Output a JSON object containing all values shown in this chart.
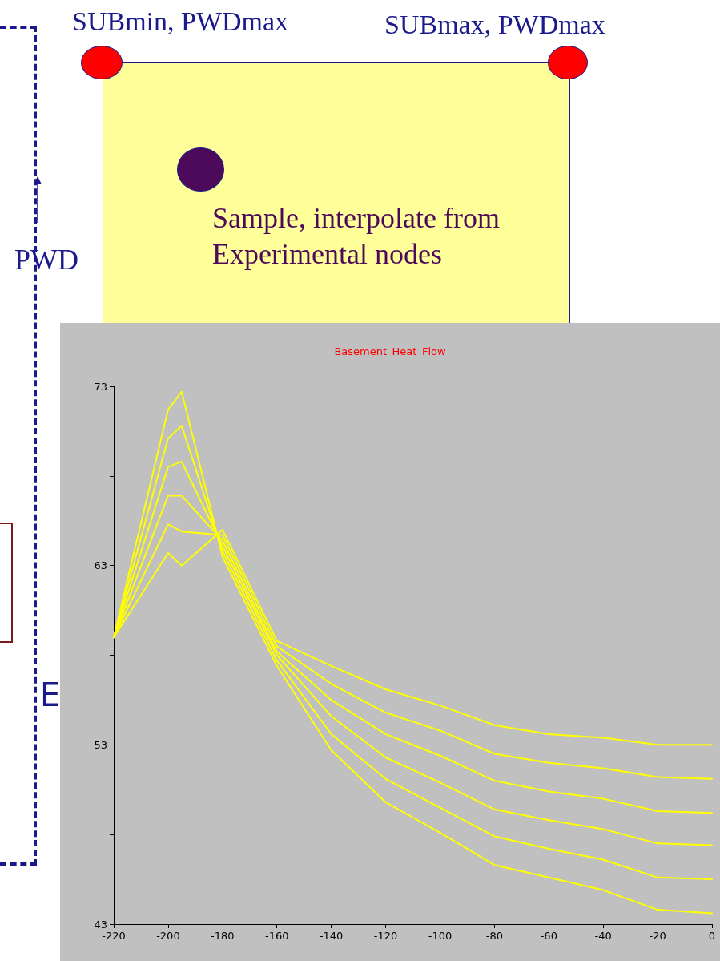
{
  "chart_data": {
    "type": "line",
    "title": "Basement_Heat_Flow",
    "annotations": [
      "SUBmin, PWDmax",
      "SUBmax, PWDmax",
      "Sample, interpolate from\nExperimental nodes",
      "PWD",
      "E"
    ],
    "x": [
      -220,
      -200,
      -195,
      -180,
      -160,
      -140,
      -120,
      -100,
      -80,
      -60,
      -40,
      -20,
      0
    ],
    "series": [
      {
        "color": "#ffff00",
        "values": [
          59.0,
          71.7,
          72.7,
          63.5,
          57.4,
          52.7,
          49.8,
          48.1,
          46.3,
          45.6,
          44.9,
          43.8,
          43.6
        ]
      },
      {
        "color": "#ffff00",
        "values": [
          59.0,
          70.1,
          70.8,
          63.8,
          57.7,
          53.6,
          51.1,
          49.5,
          47.9,
          47.2,
          46.6,
          45.6,
          45.5
        ]
      },
      {
        "color": "#ffff00",
        "values": [
          59.0,
          68.5,
          68.8,
          64.1,
          58.0,
          54.6,
          52.3,
          50.9,
          49.4,
          48.8,
          48.3,
          47.5,
          47.4
        ]
      },
      {
        "color": "#ffff00",
        "values": [
          59.0,
          66.9,
          66.9,
          64.4,
          58.2,
          55.5,
          53.6,
          52.4,
          51.0,
          50.4,
          50.0,
          49.3,
          49.2
        ]
      },
      {
        "color": "#ffff00",
        "values": [
          59.0,
          65.3,
          64.9,
          64.7,
          58.5,
          56.4,
          54.8,
          53.8,
          52.5,
          52.0,
          51.7,
          51.2,
          51.1
        ]
      },
      {
        "color": "#ffff00",
        "values": [
          59.0,
          63.7,
          63.0,
          65.0,
          58.8,
          57.4,
          56.1,
          55.2,
          54.1,
          53.6,
          53.4,
          53.0,
          53.0
        ]
      }
    ],
    "xlim": [
      -220,
      0
    ],
    "xticks": [
      -220,
      -200,
      -180,
      -160,
      -140,
      -120,
      -100,
      -80,
      -60,
      -40,
      -20,
      0
    ],
    "ylim": [
      43,
      73
    ],
    "yticks": [
      43,
      {
        "value": 48,
        "label": null
      },
      53,
      {
        "value": 58,
        "label": null
      },
      63,
      {
        "value": 68,
        "label": null
      },
      73
    ],
    "grid": false,
    "marker": "none",
    "line_style": "solid"
  }
}
